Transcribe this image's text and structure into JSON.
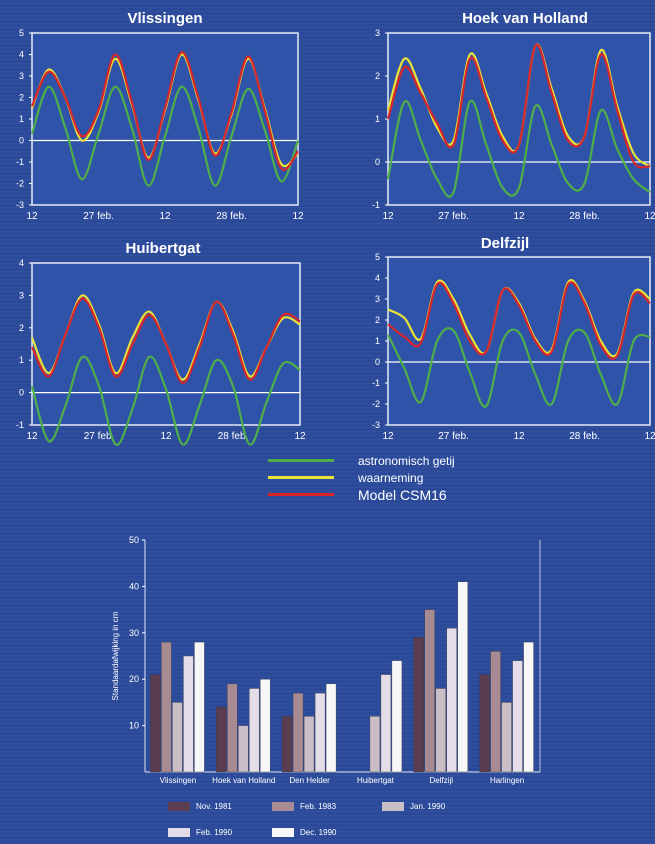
{
  "chart_data": [
    {
      "type": "line",
      "title": "Vlissingen",
      "ylim": [
        -3,
        5
      ],
      "yticks": [
        "5",
        "4",
        "3",
        "2",
        "1",
        "0",
        "-1",
        "-2",
        "-3"
      ],
      "xtick_labels": [
        "12",
        "27 feb.",
        "12",
        "28 feb.",
        "12"
      ],
      "series": [
        {
          "name": "astronomisch getij",
          "color": "#4fae4a",
          "x": [
            0,
            3,
            6,
            9,
            12,
            15,
            18,
            21,
            24,
            27,
            30,
            33,
            36,
            39,
            42,
            45,
            48
          ],
          "y": [
            0.3,
            2.5,
            0.6,
            -1.8,
            0.3,
            2.5,
            0.6,
            -2.1,
            0.2,
            2.5,
            0.6,
            -2.1,
            0.2,
            2.4,
            0.5,
            -1.9,
            0.0
          ]
        },
        {
          "name": "waarneming",
          "color": "#e8e23a",
          "x": [
            0,
            3,
            6,
            9,
            12,
            15,
            18,
            21,
            24,
            27,
            30,
            33,
            36,
            39,
            42,
            45,
            48
          ],
          "y": [
            1.5,
            3.3,
            2.0,
            0.0,
            1.3,
            3.8,
            1.7,
            -0.8,
            1.4,
            4.0,
            1.9,
            -0.6,
            1.2,
            3.8,
            1.5,
            -1.1,
            -0.6
          ]
        },
        {
          "name": "Model CSM16",
          "color": "#d8262a",
          "x": [
            0,
            3,
            6,
            9,
            12,
            15,
            18,
            21,
            24,
            27,
            30,
            33,
            36,
            39,
            42,
            45,
            48
          ],
          "y": [
            1.6,
            3.2,
            2.0,
            0.2,
            1.4,
            4.0,
            1.8,
            -0.9,
            1.5,
            4.1,
            2.0,
            -0.7,
            1.3,
            3.9,
            1.4,
            -1.3,
            -0.5
          ]
        }
      ]
    },
    {
      "type": "line",
      "title": "Hoek van Holland",
      "ylim": [
        -1,
        3
      ],
      "yticks": [
        "3",
        "2",
        "1",
        "0",
        "-1"
      ],
      "xtick_labels": [
        "12",
        "27 feb.",
        "12",
        "28 feb.",
        "12"
      ],
      "series": [
        {
          "name": "astronomisch getij",
          "color": "#4fae4a",
          "x": [
            0,
            3,
            6,
            9,
            12,
            15,
            18,
            21,
            24,
            27,
            30,
            33,
            36,
            39,
            42,
            45,
            48
          ],
          "y": [
            -0.4,
            1.4,
            0.5,
            -0.4,
            -0.7,
            1.4,
            0.4,
            -0.6,
            -0.6,
            1.3,
            0.4,
            -0.5,
            -0.5,
            1.2,
            0.3,
            -0.4,
            -0.7
          ]
        },
        {
          "name": "waarneming",
          "color": "#e8e23a",
          "x": [
            0,
            3,
            6,
            9,
            12,
            15,
            18,
            21,
            24,
            27,
            30,
            33,
            36,
            39,
            42,
            45,
            48
          ],
          "y": [
            1.2,
            2.4,
            1.7,
            0.8,
            0.5,
            2.5,
            1.6,
            0.6,
            0.4,
            2.7,
            1.7,
            0.6,
            0.6,
            2.6,
            1.3,
            0.2,
            -0.1
          ]
        },
        {
          "name": "Model CSM16",
          "color": "#d8262a",
          "x": [
            0,
            3,
            6,
            9,
            12,
            15,
            18,
            21,
            24,
            27,
            30,
            33,
            36,
            39,
            42,
            45,
            48
          ],
          "y": [
            1.0,
            2.2,
            1.6,
            0.9,
            0.4,
            2.4,
            1.5,
            0.5,
            0.4,
            2.7,
            1.6,
            0.5,
            0.6,
            2.5,
            1.2,
            0.0,
            -0.1
          ]
        }
      ]
    },
    {
      "type": "line",
      "title": "Huibertgat",
      "ylim": [
        -1,
        4
      ],
      "yticks": [
        "4",
        "3",
        "2",
        "1",
        "0",
        "-1"
      ],
      "xtick_labels": [
        "12",
        "27 feb.",
        "12",
        "28 feb.",
        "12"
      ],
      "series": [
        {
          "name": "astronomisch getij",
          "color": "#4fae4a",
          "x": [
            0,
            3,
            6,
            9,
            12,
            15,
            18,
            21,
            24,
            27,
            30,
            33,
            36,
            39,
            42,
            45,
            48
          ],
          "y": [
            0.2,
            -1.5,
            -0.4,
            1.1,
            0.2,
            -1.6,
            -0.5,
            1.1,
            0.1,
            -1.6,
            -0.4,
            1.0,
            0.2,
            -1.6,
            -0.3,
            0.9,
            0.7
          ]
        },
        {
          "name": "waarneming",
          "color": "#e8e23a",
          "x": [
            0,
            3,
            6,
            9,
            12,
            15,
            18,
            21,
            24,
            27,
            30,
            33,
            36,
            39,
            42,
            45,
            48
          ],
          "y": [
            1.7,
            0.6,
            1.8,
            3.0,
            2.1,
            0.6,
            1.7,
            2.5,
            1.5,
            0.4,
            1.5,
            2.8,
            1.9,
            0.5,
            1.4,
            2.3,
            2.1
          ]
        },
        {
          "name": "Model CSM16",
          "color": "#d8262a",
          "x": [
            0,
            3,
            6,
            9,
            12,
            15,
            18,
            21,
            24,
            27,
            30,
            33,
            36,
            39,
            42,
            45,
            48
          ],
          "y": [
            1.4,
            0.5,
            1.8,
            2.9,
            2.0,
            0.5,
            1.5,
            2.4,
            1.5,
            0.3,
            1.4,
            2.8,
            1.8,
            0.4,
            1.4,
            2.4,
            2.2
          ]
        }
      ]
    },
    {
      "type": "line",
      "title": "Delfzijl",
      "ylim": [
        -3,
        5
      ],
      "yticks": [
        "5",
        "4",
        "3",
        "2",
        "1",
        "0",
        "-1",
        "-2",
        "-3"
      ],
      "xtick_labels": [
        "12",
        "27 feb.",
        "12",
        "28 feb.",
        "12"
      ],
      "series": [
        {
          "name": "astronomisch getij",
          "color": "#4fae4a",
          "x": [
            0,
            3,
            6,
            9,
            12,
            15,
            18,
            21,
            24,
            27,
            30,
            33,
            36,
            39,
            42,
            45,
            48
          ],
          "y": [
            1.3,
            -0.3,
            -1.9,
            1.0,
            1.5,
            -0.5,
            -2.1,
            1.0,
            1.4,
            -0.6,
            -2.0,
            1.0,
            1.4,
            -0.6,
            -2.0,
            1.0,
            1.2
          ]
        },
        {
          "name": "waarneming",
          "color": "#e8e23a",
          "x": [
            0,
            3,
            6,
            9,
            12,
            15,
            18,
            21,
            24,
            27,
            30,
            33,
            36,
            39,
            42,
            45,
            48
          ],
          "y": [
            2.5,
            2.1,
            1.1,
            3.8,
            3.0,
            1.3,
            0.5,
            3.4,
            2.8,
            1.1,
            0.6,
            3.8,
            2.9,
            1.0,
            0.4,
            3.3,
            3.0
          ]
        },
        {
          "name": "Model CSM16",
          "color": "#d8262a",
          "x": [
            0,
            3,
            6,
            9,
            12,
            15,
            18,
            21,
            24,
            27,
            30,
            33,
            36,
            39,
            42,
            45,
            48
          ],
          "y": [
            1.8,
            1.2,
            0.9,
            3.7,
            2.8,
            1.0,
            0.5,
            3.4,
            2.7,
            1.0,
            0.5,
            3.7,
            2.8,
            0.8,
            0.3,
            3.2,
            2.8
          ]
        }
      ]
    },
    {
      "type": "bar",
      "title": "",
      "ylabel": "Standaardafwijking in cm",
      "ylim": [
        0,
        50
      ],
      "yticks": [
        "50",
        "40",
        "30",
        "20",
        "10"
      ],
      "categories": [
        "Vlissingen",
        "Hoek van Holland",
        "Den Helder",
        "Huibertgat",
        "Delfzijl",
        "Harlingen"
      ],
      "series": [
        {
          "name": "Nov. 1981",
          "color": "#5a3d4e",
          "values": [
            21,
            14,
            12,
            0,
            29,
            21
          ]
        },
        {
          "name": "Feb. 1983",
          "color": "#a88a93",
          "values": [
            28,
            19,
            17,
            0,
            35,
            26
          ]
        },
        {
          "name": "Jan. 1990",
          "color": "#c9bdc6",
          "values": [
            15,
            10,
            12,
            12,
            18,
            15
          ]
        },
        {
          "name": "Feb. 1990",
          "color": "#e4dce6",
          "values": [
            25,
            18,
            17,
            21,
            31,
            24
          ]
        },
        {
          "name": "Dec. 1990",
          "color": "#f7f7f7",
          "values": [
            28,
            20,
            19,
            24,
            41,
            28
          ]
        }
      ]
    }
  ],
  "line_legend": [
    {
      "label": "astronomisch getij",
      "color": "#4fae4a"
    },
    {
      "label": "waarneming",
      "color": "#e8e23a"
    },
    {
      "label": "Model CSM16",
      "color": "#d8262a"
    }
  ]
}
